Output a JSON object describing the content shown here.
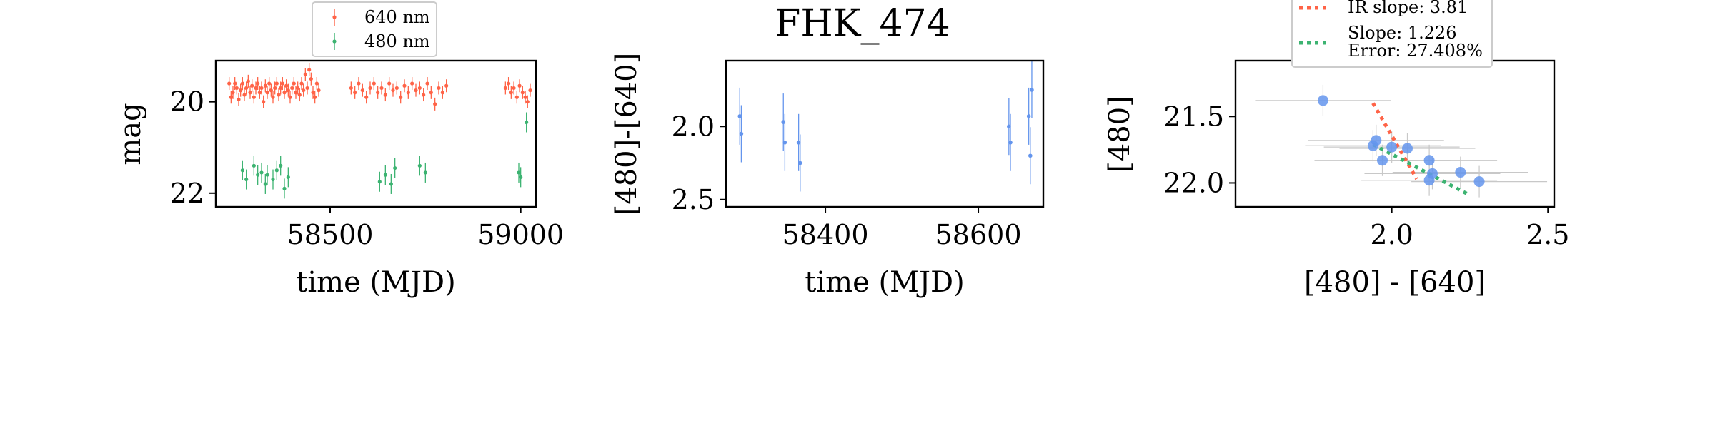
{
  "title": "FHK_474",
  "colors": {
    "r640": "#ff6347",
    "g480": "#3cb371",
    "blue": "#6495ed",
    "ir_line": "#ff6347",
    "fit_line": "#3cb371",
    "err": "#c8c8c8"
  },
  "chart_data": [
    {
      "type": "scatter",
      "name": "lightcurve",
      "xlabel": "time (MJD)",
      "ylabel": "mag",
      "xlim": [
        58200,
        59040
      ],
      "ylim": [
        22.3,
        19.1
      ],
      "xticks": [
        58500,
        59000
      ],
      "yticks": [
        20,
        22
      ],
      "legend_position": "top-center",
      "series": [
        {
          "name": "640 nm",
          "color": "#ff6347",
          "points": [
            [
              58235,
              19.6
            ],
            [
              58240,
              19.9
            ],
            [
              58245,
              19.8
            ],
            [
              58250,
              19.6
            ],
            [
              58255,
              19.7
            ],
            [
              58260,
              19.95
            ],
            [
              58265,
              19.75
            ],
            [
              58270,
              19.6
            ],
            [
              58275,
              19.85
            ],
            [
              58280,
              19.7
            ],
            [
              58285,
              19.55
            ],
            [
              58290,
              19.8
            ],
            [
              58295,
              19.65
            ],
            [
              58300,
              19.9
            ],
            [
              58305,
              19.7
            ],
            [
              58310,
              19.6
            ],
            [
              58315,
              19.8
            ],
            [
              58320,
              19.7
            ],
            [
              58325,
              20.0
            ],
            [
              58330,
              19.65
            ],
            [
              58335,
              19.8
            ],
            [
              58340,
              19.6
            ],
            [
              58345,
              19.75
            ],
            [
              58350,
              19.9
            ],
            [
              58355,
              19.7
            ],
            [
              58360,
              19.6
            ],
            [
              58365,
              19.85
            ],
            [
              58370,
              19.7
            ],
            [
              58375,
              19.6
            ],
            [
              58380,
              19.8
            ],
            [
              58385,
              19.65
            ],
            [
              58390,
              19.75
            ],
            [
              58395,
              19.9
            ],
            [
              58400,
              19.7
            ],
            [
              58405,
              19.6
            ],
            [
              58410,
              19.8
            ],
            [
              58415,
              19.7
            ],
            [
              58420,
              19.85
            ],
            [
              58425,
              19.6
            ],
            [
              58430,
              19.75
            ],
            [
              58435,
              19.4
            ],
            [
              58440,
              19.7
            ],
            [
              58445,
              19.3
            ],
            [
              58450,
              19.5
            ],
            [
              58455,
              19.8
            ],
            [
              58460,
              19.9
            ],
            [
              58465,
              19.6
            ],
            [
              58470,
              19.75
            ],
            [
              58555,
              19.7
            ],
            [
              58565,
              19.8
            ],
            [
              58575,
              19.6
            ],
            [
              58585,
              19.75
            ],
            [
              58595,
              19.9
            ],
            [
              58605,
              19.7
            ],
            [
              58615,
              19.6
            ],
            [
              58625,
              19.8
            ],
            [
              58635,
              19.7
            ],
            [
              58645,
              19.85
            ],
            [
              58655,
              19.6
            ],
            [
              58665,
              19.75
            ],
            [
              58675,
              19.7
            ],
            [
              58685,
              19.9
            ],
            [
              58695,
              19.65
            ],
            [
              58705,
              19.8
            ],
            [
              58715,
              19.6
            ],
            [
              58725,
              19.75
            ],
            [
              58735,
              19.7
            ],
            [
              58745,
              19.85
            ],
            [
              58755,
              19.6
            ],
            [
              58765,
              19.8
            ],
            [
              58775,
              20.05
            ],
            [
              58785,
              19.7
            ],
            [
              58795,
              19.8
            ],
            [
              58805,
              19.65
            ],
            [
              58960,
              19.7
            ],
            [
              58968,
              19.6
            ],
            [
              58975,
              19.8
            ],
            [
              58982,
              19.7
            ],
            [
              58990,
              19.9
            ],
            [
              58997,
              19.65
            ],
            [
              59005,
              19.8
            ],
            [
              59012,
              19.9
            ],
            [
              59018,
              20.0
            ],
            [
              59025,
              19.75
            ]
          ]
        },
        {
          "name": "480 nm",
          "color": "#3cb371",
          "points": [
            [
              58270,
              21.5
            ],
            [
              58280,
              21.7
            ],
            [
              58300,
              21.4
            ],
            [
              58310,
              21.6
            ],
            [
              58320,
              21.55
            ],
            [
              58330,
              21.8
            ],
            [
              58335,
              21.6
            ],
            [
              58350,
              21.7
            ],
            [
              58360,
              21.5
            ],
            [
              58370,
              21.4
            ],
            [
              58380,
              21.9
            ],
            [
              58390,
              21.65
            ],
            [
              58630,
              21.75
            ],
            [
              58645,
              21.6
            ],
            [
              58660,
              21.8
            ],
            [
              58670,
              21.45
            ],
            [
              58735,
              21.4
            ],
            [
              58750,
              21.55
            ],
            [
              58995,
              21.55
            ],
            [
              59000,
              21.65
            ],
            [
              59015,
              20.45
            ]
          ]
        }
      ]
    },
    {
      "type": "scatter",
      "name": "color-curve",
      "xlabel": "time (MJD)",
      "ylabel": "[480]-[640]",
      "xlim": [
        58270,
        58685
      ],
      "ylim": [
        2.55,
        1.55
      ],
      "xticks": [
        58400,
        58600
      ],
      "yticks": [
        2.0,
        2.5
      ],
      "series": [
        {
          "name": "",
          "color": "#6495ed",
          "points": [
            [
              58288,
              1.93
            ],
            [
              58290,
              2.05
            ],
            [
              58345,
              1.97
            ],
            [
              58347,
              2.11
            ],
            [
              58365,
              2.11
            ],
            [
              58367,
              2.25
            ],
            [
              58640,
              2.0
            ],
            [
              58642,
              2.11
            ],
            [
              58666,
              1.93
            ],
            [
              58668,
              2.2
            ],
            [
              58670,
              1.75
            ]
          ]
        }
      ]
    },
    {
      "type": "scatter",
      "name": "color-magnitude",
      "xlabel": "[480] - [640]",
      "ylabel": "[480]",
      "xlim": [
        1.5,
        2.52
      ],
      "ylim": [
        22.18,
        21.08
      ],
      "xticks": [
        2.0,
        2.5
      ],
      "yticks": [
        21.5,
        22.0
      ],
      "legend_position": "top-center",
      "legend": [
        "IR slope: 3.81",
        "Slope: 1.226",
        "Error: 27.408%"
      ],
      "points": [
        [
          1.78,
          21.38
        ],
        [
          1.94,
          21.72
        ],
        [
          1.95,
          21.68
        ],
        [
          1.97,
          21.83
        ],
        [
          2.0,
          21.73
        ],
        [
          2.05,
          21.74
        ],
        [
          2.12,
          21.83
        ],
        [
          2.12,
          21.98
        ],
        [
          2.13,
          21.93
        ],
        [
          2.22,
          21.92
        ],
        [
          2.28,
          21.99
        ]
      ],
      "ir_line": [
        [
          1.94,
          21.4
        ],
        [
          2.08,
          21.97
        ]
      ],
      "fit_line": [
        [
          1.94,
          21.71
        ],
        [
          2.24,
          22.08
        ]
      ]
    }
  ]
}
